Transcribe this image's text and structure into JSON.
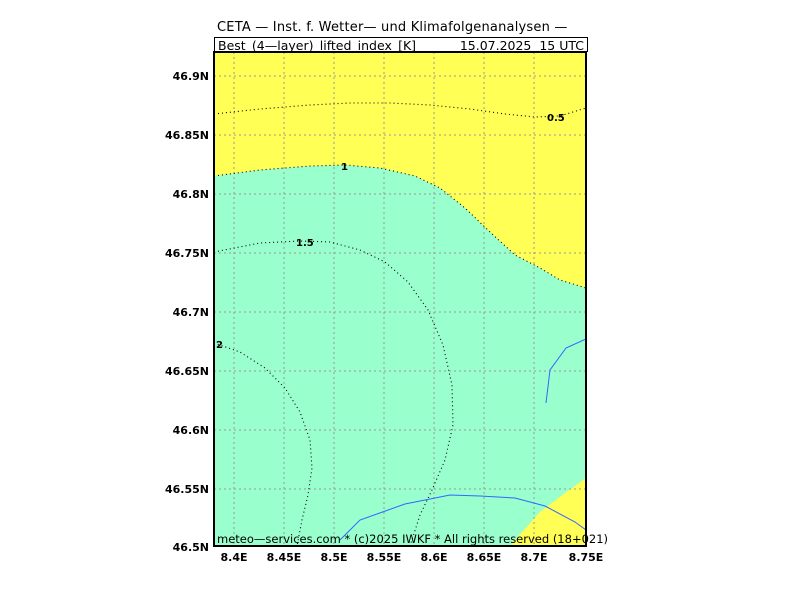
{
  "header": {
    "title": "CETA — Inst. f. Wetter— und Klimafolgenanalysen —",
    "variable": "Best_(4—layer)_lifted_index_[K]",
    "datetime": "15.07.2025  15 UTC"
  },
  "footer": "meteo—services.com * (c)2025 IWKF * All rights reserved (18+021)",
  "map": {
    "lon_range": [
      8.38,
      8.75
    ],
    "lat_range": [
      46.5,
      46.92
    ],
    "lat_ticks": [
      {
        "value": 46.9,
        "label": "46.9N"
      },
      {
        "value": 46.85,
        "label": "46.85N"
      },
      {
        "value": 46.8,
        "label": "46.8N"
      },
      {
        "value": 46.75,
        "label": "46.75N"
      },
      {
        "value": 46.7,
        "label": "46.7N"
      },
      {
        "value": 46.65,
        "label": "46.65N"
      },
      {
        "value": 46.6,
        "label": "46.6N"
      },
      {
        "value": 46.55,
        "label": "46.55N"
      },
      {
        "value": 46.5,
        "label": "46.5N"
      }
    ],
    "lon_ticks": [
      {
        "value": 8.4,
        "label": "8.4E"
      },
      {
        "value": 8.45,
        "label": "8.45E"
      },
      {
        "value": 8.5,
        "label": "8.5E"
      },
      {
        "value": 8.55,
        "label": "8.55E"
      },
      {
        "value": 8.6,
        "label": "8.6E"
      },
      {
        "value": 8.65,
        "label": "8.65E"
      },
      {
        "value": 8.7,
        "label": "8.7E"
      },
      {
        "value": 8.75,
        "label": "8.75E"
      }
    ],
    "contour_labels": [
      "0.5",
      "1",
      "1.5",
      "2"
    ],
    "colors": {
      "yellow_fill": "#ffff55",
      "green_fill": "#99ffcc",
      "lake_line": "#3366ff",
      "grid": "#999999"
    }
  }
}
